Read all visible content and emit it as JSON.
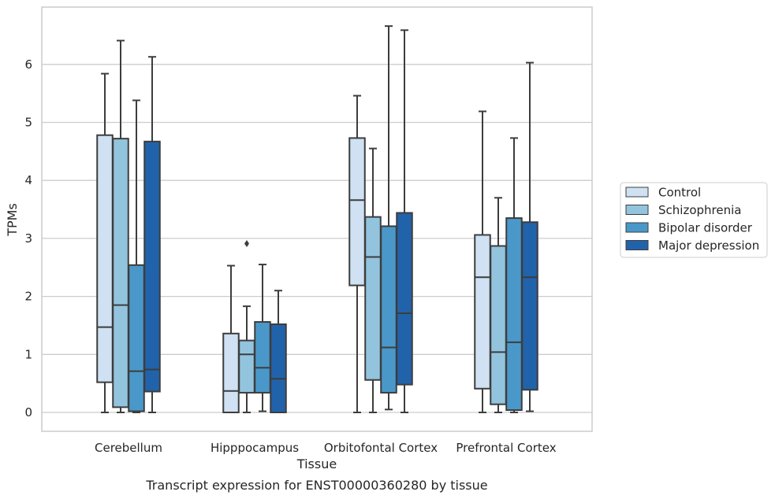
{
  "caption": "Transcript expression for ENST00000360280 by tissue",
  "colors": {
    "Control": "#cfe1f2",
    "Schizophrenia": "#93c4de",
    "Bipolar disorder": "#4a98c9",
    "Major depression": "#2163aa",
    "stroke": "#3d3d3d",
    "grid": "#cccccc"
  },
  "chart_data": {
    "type": "box",
    "xlabel": "Tissue",
    "ylabel": "TPMs",
    "ylim": [
      -0.32,
      7.0
    ],
    "yticks": [
      0,
      1,
      2,
      3,
      4,
      5,
      6
    ],
    "grid": "horizontal",
    "legend_position": "right",
    "categories": [
      "Cerebellum",
      "Hipppocampus",
      "Orbitofontal Cortex",
      "Prefrontal Cortex"
    ],
    "series": [
      {
        "name": "Control",
        "boxes": [
          {
            "min": 0,
            "q1": 0.52,
            "median": 1.47,
            "q3": 4.78,
            "max": 5.84,
            "outliers": []
          },
          {
            "min": 0,
            "q1": 0,
            "median": 0.37,
            "q3": 1.36,
            "max": 2.53,
            "outliers": []
          },
          {
            "min": 0,
            "q1": 2.19,
            "median": 3.66,
            "q3": 4.73,
            "max": 5.46,
            "outliers": []
          },
          {
            "min": 0,
            "q1": 0.41,
            "median": 2.33,
            "q3": 3.06,
            "max": 5.19,
            "outliers": []
          }
        ]
      },
      {
        "name": "Schizophrenia",
        "boxes": [
          {
            "min": 0,
            "q1": 0.09,
            "median": 1.85,
            "q3": 4.72,
            "max": 6.41,
            "outliers": []
          },
          {
            "min": 0,
            "q1": 0.34,
            "median": 1.0,
            "q3": 1.24,
            "max": 1.83,
            "outliers": [
              2.91
            ]
          },
          {
            "min": 0,
            "q1": 0.56,
            "median": 2.68,
            "q3": 3.37,
            "max": 4.55,
            "outliers": []
          },
          {
            "min": 0,
            "q1": 0.14,
            "median": 1.04,
            "q3": 2.87,
            "max": 3.7,
            "outliers": []
          }
        ]
      },
      {
        "name": "Bipolar disorder",
        "boxes": [
          {
            "min": 0,
            "q1": 0.02,
            "median": 0.71,
            "q3": 2.54,
            "max": 5.38,
            "outliers": []
          },
          {
            "min": 0.02,
            "q1": 0.34,
            "median": 0.77,
            "q3": 1.56,
            "max": 2.55,
            "outliers": []
          },
          {
            "min": 0.05,
            "q1": 0.34,
            "median": 1.12,
            "q3": 3.21,
            "max": 6.66,
            "outliers": []
          },
          {
            "min": 0,
            "q1": 0.04,
            "median": 1.21,
            "q3": 3.35,
            "max": 4.73,
            "outliers": []
          }
        ]
      },
      {
        "name": "Major depression",
        "boxes": [
          {
            "min": 0,
            "q1": 0.36,
            "median": 0.74,
            "q3": 4.67,
            "max": 6.13,
            "outliers": []
          },
          {
            "min": 0,
            "q1": 0,
            "median": 0.58,
            "q3": 1.52,
            "max": 2.1,
            "outliers": []
          },
          {
            "min": 0,
            "q1": 0.48,
            "median": 1.71,
            "q3": 3.44,
            "max": 6.59,
            "outliers": []
          },
          {
            "min": 0.02,
            "q1": 0.39,
            "median": 2.33,
            "q3": 3.28,
            "max": 6.03,
            "outliers": []
          }
        ]
      }
    ]
  }
}
